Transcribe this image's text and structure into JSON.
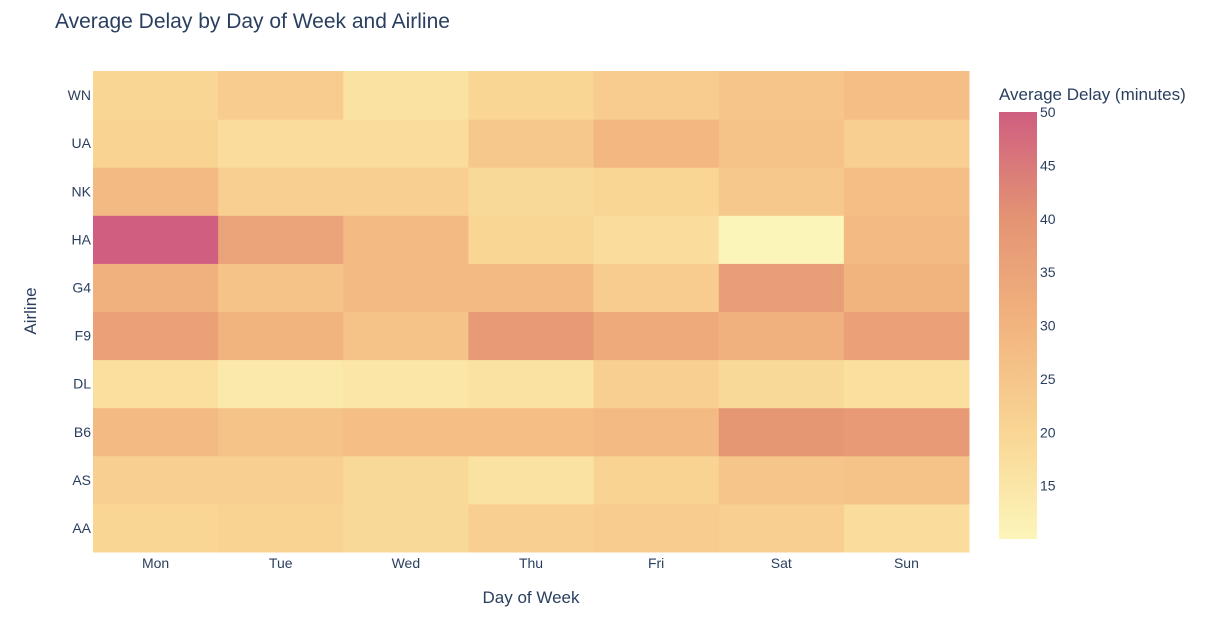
{
  "chart_data": {
    "type": "heatmap",
    "title": "Average Delay by Day of Week and Airline",
    "xlabel": "Day of Week",
    "ylabel": "Airline",
    "x": [
      "Mon",
      "Tue",
      "Wed",
      "Thu",
      "Fri",
      "Sat",
      "Sun"
    ],
    "y": [
      "AA",
      "AS",
      "B6",
      "DL",
      "F9",
      "G4",
      "HA",
      "NK",
      "UA",
      "WN"
    ],
    "z": [
      [
        20,
        21,
        19,
        22,
        23,
        22,
        18
      ],
      [
        22,
        22,
        19,
        16,
        21,
        25,
        26
      ],
      [
        28,
        26,
        27,
        27,
        28,
        39,
        38
      ],
      [
        17,
        14,
        15,
        16,
        22,
        19,
        17
      ],
      [
        36,
        30,
        26,
        38,
        33,
        31,
        36
      ],
      [
        31,
        26,
        28,
        28,
        23,
        37,
        30
      ],
      [
        50,
        35,
        28,
        20,
        18,
        10,
        28
      ],
      [
        28,
        22,
        22,
        19,
        20,
        24,
        27
      ],
      [
        21,
        18,
        18,
        24,
        29,
        26,
        22
      ],
      [
        20,
        23,
        16,
        20,
        23,
        25,
        27
      ]
    ],
    "colorscale": [
      "#fcf5ba",
      "#f9d694",
      "#f2b47f",
      "#e49473",
      "#cf5e80"
    ],
    "zmin": 10,
    "zmax": 50,
    "colorbar": {
      "title": "Average Delay (minutes)",
      "ticks": [
        15,
        20,
        25,
        30,
        35,
        40,
        45,
        50
      ]
    }
  }
}
